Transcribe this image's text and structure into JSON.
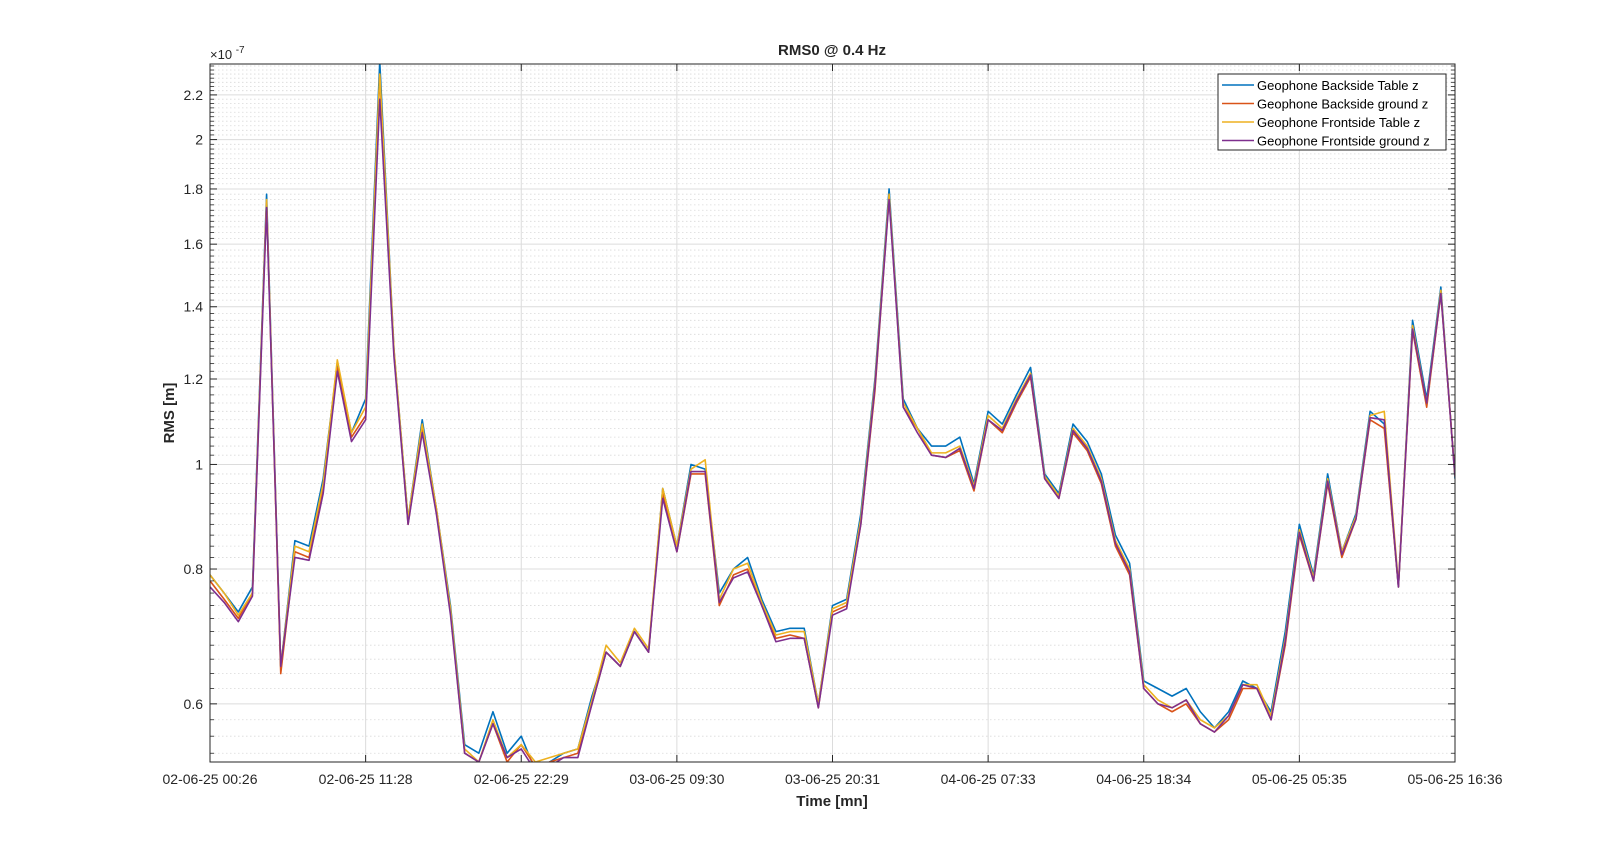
{
  "chart_data": {
    "type": "line",
    "title": "RMS0 @ 0.4 Hz",
    "xlabel": "Time [mn]",
    "ylabel": "RMS [m]",
    "y_exponent_label": "×10",
    "y_exponent_power": "-7",
    "y_scale": "log",
    "ylim": [
      0.53,
      2.35
    ],
    "y_ticks": [
      0.6,
      0.8,
      1,
      1.2,
      1.4,
      1.6,
      1.8,
      2,
      2.2
    ],
    "y_tick_labels": [
      "0.6",
      "0.8",
      "1",
      "1.2",
      "1.4",
      "1.6",
      "1.8",
      "2",
      "2.2"
    ],
    "x_tick_labels": [
      "02-06-25 00:26",
      "02-06-25 11:28",
      "02-06-25 22:29",
      "03-06-25 09:30",
      "03-06-25 20:31",
      "04-06-25 07:33",
      "04-06-25 18:34",
      "05-06-25 05:35",
      "05-06-25 16:36"
    ],
    "x_tick_index": [
      0,
      11,
      22,
      33,
      44,
      55,
      66,
      77,
      88
    ],
    "grid": true,
    "minor_grid_y": true,
    "legend_position": "top-right",
    "series": [
      {
        "name": "Geophone Backside Table z",
        "color": "#0072BD",
        "values": [
          0.79,
          0.76,
          0.73,
          0.77,
          1.78,
          0.65,
          0.85,
          0.84,
          0.97,
          1.24,
          1.07,
          1.15,
          2.36,
          1.28,
          0.89,
          1.1,
          0.91,
          0.74,
          0.55,
          0.54,
          0.59,
          0.54,
          0.56,
          0.52,
          0.53,
          0.54,
          0.545,
          0.61,
          0.67,
          0.65,
          0.7,
          0.67,
          0.95,
          0.84,
          1.0,
          0.99,
          0.76,
          0.8,
          0.82,
          0.75,
          0.7,
          0.705,
          0.705,
          0.6,
          0.74,
          0.75,
          0.9,
          1.2,
          1.8,
          1.15,
          1.08,
          1.04,
          1.04,
          1.06,
          0.96,
          1.12,
          1.09,
          1.16,
          1.23,
          0.98,
          0.94,
          1.09,
          1.05,
          0.98,
          0.86,
          0.81,
          0.63,
          0.62,
          0.61,
          0.62,
          0.59,
          0.57,
          0.59,
          0.63,
          0.62,
          0.59,
          0.7,
          0.88,
          0.79,
          0.98,
          0.83,
          0.9,
          1.12,
          1.09,
          0.77,
          1.36,
          1.15,
          1.46,
          0.97
        ]
      },
      {
        "name": "Geophone Backside ground z",
        "color": "#D95319",
        "values": [
          0.78,
          0.75,
          0.72,
          0.76,
          1.75,
          0.64,
          0.83,
          0.82,
          0.95,
          1.23,
          1.06,
          1.11,
          2.29,
          1.27,
          0.88,
          1.08,
          0.91,
          0.73,
          0.54,
          0.53,
          0.575,
          0.53,
          0.55,
          0.525,
          0.53,
          0.535,
          0.54,
          0.6,
          0.67,
          0.65,
          0.7,
          0.67,
          0.94,
          0.83,
          0.98,
          0.98,
          0.74,
          0.79,
          0.8,
          0.74,
          0.69,
          0.695,
          0.69,
          0.595,
          0.73,
          0.74,
          0.88,
          1.17,
          1.77,
          1.13,
          1.08,
          1.02,
          1.015,
          1.03,
          0.945,
          1.1,
          1.07,
          1.14,
          1.205,
          0.97,
          0.93,
          1.07,
          1.03,
          0.96,
          0.84,
          0.79,
          0.62,
          0.6,
          0.59,
          0.6,
          0.575,
          0.565,
          0.58,
          0.62,
          0.62,
          0.58,
          0.68,
          0.86,
          0.78,
          0.96,
          0.82,
          0.89,
          1.1,
          1.08,
          0.77,
          1.33,
          1.13,
          1.44,
          0.975
        ]
      },
      {
        "name": "Geophone Frontside Table z",
        "color": "#EDB120",
        "values": [
          0.79,
          0.76,
          0.725,
          0.76,
          1.76,
          0.65,
          0.84,
          0.83,
          0.96,
          1.25,
          1.07,
          1.13,
          2.3,
          1.28,
          0.89,
          1.09,
          0.91,
          0.735,
          0.545,
          0.53,
          0.58,
          0.535,
          0.55,
          0.53,
          0.535,
          0.54,
          0.545,
          0.605,
          0.68,
          0.655,
          0.705,
          0.675,
          0.95,
          0.84,
          0.99,
          1.01,
          0.75,
          0.8,
          0.81,
          0.745,
          0.695,
          0.7,
          0.7,
          0.6,
          0.735,
          0.745,
          0.89,
          1.19,
          1.78,
          1.14,
          1.08,
          1.025,
          1.025,
          1.04,
          0.955,
          1.11,
          1.08,
          1.15,
          1.215,
          0.975,
          0.935,
          1.08,
          1.04,
          0.97,
          0.85,
          0.8,
          0.625,
          0.605,
          0.595,
          0.605,
          0.58,
          0.57,
          0.585,
          0.625,
          0.625,
          0.585,
          0.69,
          0.87,
          0.785,
          0.97,
          0.83,
          0.895,
          1.11,
          1.12,
          0.775,
          1.345,
          1.14,
          1.45,
          0.975
        ]
      },
      {
        "name": "Geophone Frontside ground z",
        "color": "#7E2F8E",
        "values": [
          0.77,
          0.745,
          0.715,
          0.755,
          1.73,
          0.65,
          0.82,
          0.815,
          0.94,
          1.22,
          1.05,
          1.1,
          2.18,
          1.26,
          0.88,
          1.07,
          0.9,
          0.725,
          0.54,
          0.53,
          0.575,
          0.535,
          0.545,
          0.52,
          0.525,
          0.535,
          0.535,
          0.6,
          0.67,
          0.65,
          0.7,
          0.67,
          0.93,
          0.83,
          0.985,
          0.985,
          0.745,
          0.785,
          0.795,
          0.74,
          0.685,
          0.69,
          0.69,
          0.595,
          0.725,
          0.735,
          0.88,
          1.18,
          1.76,
          1.13,
          1.07,
          1.02,
          1.015,
          1.035,
          0.95,
          1.1,
          1.075,
          1.145,
          1.21,
          0.97,
          0.93,
          1.075,
          1.035,
          0.965,
          0.845,
          0.795,
          0.62,
          0.6,
          0.595,
          0.605,
          0.575,
          0.565,
          0.585,
          0.625,
          0.62,
          0.58,
          0.685,
          0.865,
          0.78,
          0.965,
          0.825,
          0.89,
          1.105,
          1.1,
          0.77,
          1.335,
          1.14,
          1.44,
          0.975
        ]
      }
    ]
  }
}
